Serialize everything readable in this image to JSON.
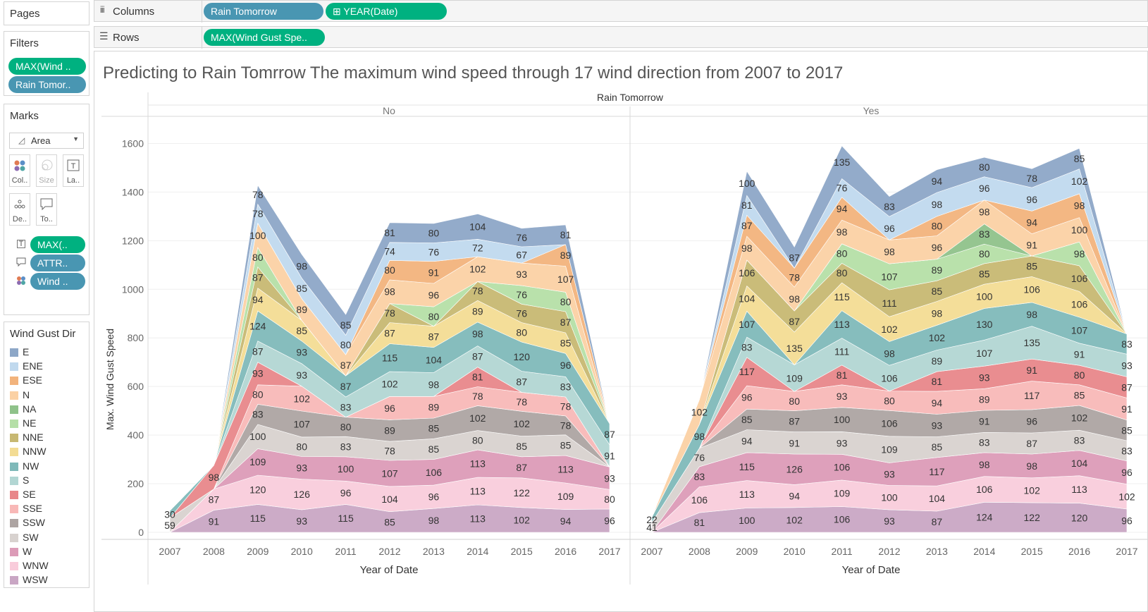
{
  "pages": {
    "title": "Pages"
  },
  "filters": {
    "title": "Filters",
    "pills": [
      "MAX(Wind ..",
      "Rain Tomor.."
    ]
  },
  "marks": {
    "title": "Marks",
    "type": "Area",
    "buttons": [
      "Col..",
      "Size",
      "La..",
      "De..",
      "To.."
    ],
    "pills": [
      "MAX(..",
      "ATTR..",
      "Wind .."
    ]
  },
  "legend": {
    "title": "Wind Gust Dir",
    "items": [
      {
        "name": "E",
        "color": "#8da7c7"
      },
      {
        "name": "ENE",
        "color": "#c0d9ee"
      },
      {
        "name": "ESE",
        "color": "#f2b37c"
      },
      {
        "name": "N",
        "color": "#fbd1a4"
      },
      {
        "name": "NA",
        "color": "#8fc28a"
      },
      {
        "name": "NE",
        "color": "#b5dfa7"
      },
      {
        "name": "NNE",
        "color": "#c7b872"
      },
      {
        "name": "NNW",
        "color": "#f3dc94"
      },
      {
        "name": "NW",
        "color": "#7fb9b9"
      },
      {
        "name": "S",
        "color": "#b2d6d3"
      },
      {
        "name": "SE",
        "color": "#e8878a"
      },
      {
        "name": "SSE",
        "color": "#f8b8b7"
      },
      {
        "name": "SSW",
        "color": "#ada4a2"
      },
      {
        "name": "SW",
        "color": "#d8d2cf"
      },
      {
        "name": "W",
        "color": "#dc9bb7"
      },
      {
        "name": "WNW",
        "color": "#f9ccdb"
      },
      {
        "name": "WSW",
        "color": "#c9a6c4"
      }
    ]
  },
  "shelves": {
    "columns_label": "Columns",
    "rows_label": "Rows",
    "columns_pills": [
      "Rain Tomorrow",
      "⊞ YEAR(Date)"
    ],
    "rows_pills": [
      "MAX(Wind Gust Spe.."
    ]
  },
  "chart_data": {
    "type": "area",
    "title": "Predicting to Rain Tomrrow The maximum wind speed through 17 wind direction  from 2007 to 2017",
    "column_header": "Rain Tomorrow",
    "panels": [
      "No",
      "Yes"
    ],
    "xlabel": "Year of Date",
    "ylabel": "Max. Wind Gust Speed",
    "ylim": [
      0,
      1700
    ],
    "yticks": [
      0,
      200,
      400,
      600,
      800,
      1000,
      1200,
      1400,
      1600
    ],
    "x": [
      2007,
      2008,
      2009,
      2010,
      2011,
      2012,
      2013,
      2014,
      2015,
      2016,
      2017
    ],
    "series_order": [
      "WSW",
      "WNW",
      "W",
      "SW",
      "SSW",
      "SSE",
      "SE",
      "S",
      "NW",
      "NNW",
      "NNE",
      "NE",
      "NA",
      "N",
      "ESE",
      "ENE",
      "E"
    ],
    "panels_data": [
      {
        "panel": "No",
        "series": [
          {
            "name": "WSW",
            "values": [
              null,
              91,
              115,
              93,
              115,
              85,
              98,
              113,
              102,
              94,
              96
            ]
          },
          {
            "name": "WNW",
            "values": [
              null,
              87,
              120,
              126,
              96,
              104,
              96,
              113,
              122,
              109,
              80
            ]
          },
          {
            "name": "W",
            "values": [
              null,
              null,
              109,
              93,
              100,
              107,
              106,
              113,
              87,
              113,
              93
            ]
          },
          {
            "name": "SW",
            "values": [
              59,
              null,
              100,
              80,
              83,
              78,
              85,
              80,
              85,
              85,
              null
            ]
          },
          {
            "name": "SSW",
            "values": [
              null,
              null,
              83,
              107,
              80,
              89,
              85,
              102,
              102,
              78,
              null
            ]
          },
          {
            "name": "SSE",
            "values": [
              null,
              null,
              80,
              102,
              null,
              96,
              89,
              78,
              78,
              78,
              null
            ]
          },
          {
            "name": "SE",
            "values": [
              null,
              98,
              93,
              null,
              null,
              null,
              null,
              81,
              null,
              null,
              null
            ]
          },
          {
            "name": "S",
            "values": [
              null,
              null,
              87,
              93,
              83,
              102,
              98,
              87,
              87,
              83,
              91
            ]
          },
          {
            "name": "NW",
            "values": [
              30,
              null,
              124,
              93,
              87,
              115,
              104,
              98,
              120,
              96,
              87
            ]
          },
          {
            "name": "NNW",
            "values": [
              null,
              null,
              94,
              85,
              null,
              87,
              87,
              89,
              80,
              85,
              null
            ]
          },
          {
            "name": "NNE",
            "values": [
              null,
              null,
              87,
              null,
              null,
              78,
              null,
              78,
              76,
              87,
              null
            ]
          },
          {
            "name": "NE",
            "values": [
              null,
              null,
              80,
              null,
              null,
              null,
              80,
              null,
              76,
              80,
              null
            ]
          },
          {
            "name": "NA",
            "values": [
              null,
              null,
              null,
              null,
              null,
              null,
              null,
              null,
              null,
              null,
              null
            ]
          },
          {
            "name": "N",
            "values": [
              null,
              null,
              100,
              89,
              87,
              98,
              96,
              102,
              93,
              107,
              null
            ]
          },
          {
            "name": "ESE",
            "values": [
              null,
              null,
              null,
              null,
              null,
              80,
              91,
              null,
              null,
              89,
              null
            ]
          },
          {
            "name": "ENE",
            "values": [
              null,
              null,
              78,
              85,
              80,
              74,
              76,
              72,
              67,
              null,
              null
            ]
          },
          {
            "name": "E",
            "values": [
              null,
              null,
              78,
              98,
              85,
              81,
              80,
              104,
              76,
              81,
              null
            ]
          }
        ]
      },
      {
        "panel": "Yes",
        "series": [
          {
            "name": "WSW",
            "values": [
              null,
              81,
              100,
              102,
              106,
              93,
              87,
              124,
              122,
              120,
              96
            ]
          },
          {
            "name": "WNW",
            "values": [
              null,
              106,
              113,
              94,
              109,
              100,
              104,
              106,
              102,
              113,
              102
            ]
          },
          {
            "name": "W",
            "values": [
              null,
              83,
              115,
              126,
              106,
              93,
              117,
              98,
              98,
              104,
              96
            ]
          },
          {
            "name": "SW",
            "values": [
              41,
              76,
              94,
              91,
              93,
              109,
              85,
              83,
              87,
              83,
              83
            ]
          },
          {
            "name": "SSW",
            "values": [
              null,
              null,
              85,
              87,
              100,
              106,
              93,
              91,
              96,
              102,
              85
            ]
          },
          {
            "name": "SSE",
            "values": [
              null,
              null,
              96,
              80,
              93,
              80,
              94,
              89,
              117,
              85,
              91
            ]
          },
          {
            "name": "SE",
            "values": [
              null,
              null,
              117,
              null,
              81,
              null,
              81,
              93,
              91,
              80,
              87
            ]
          },
          {
            "name": "S",
            "values": [
              null,
              null,
              83,
              109,
              111,
              106,
              89,
              107,
              135,
              91,
              93
            ]
          },
          {
            "name": "NW",
            "values": [
              22,
              98,
              107,
              null,
              113,
              98,
              102,
              130,
              98,
              107,
              83
            ]
          },
          {
            "name": "NNW",
            "values": [
              null,
              null,
              104,
              135,
              115,
              102,
              98,
              100,
              106,
              106,
              null
            ]
          },
          {
            "name": "NNE",
            "values": [
              null,
              null,
              106,
              87,
              80,
              111,
              85,
              85,
              85,
              106,
              null
            ]
          },
          {
            "name": "NE",
            "values": [
              null,
              null,
              null,
              null,
              80,
              107,
              89,
              80,
              null,
              98,
              null
            ]
          },
          {
            "name": "NA",
            "values": [
              null,
              null,
              null,
              null,
              null,
              null,
              null,
              83,
              null,
              null,
              null
            ]
          },
          {
            "name": "N",
            "values": [
              null,
              102,
              98,
              98,
              98,
              98,
              96,
              98,
              91,
              100,
              null
            ]
          },
          {
            "name": "ESE",
            "values": [
              null,
              null,
              87,
              78,
              94,
              null,
              80,
              null,
              94,
              98,
              null
            ]
          },
          {
            "name": "ENE",
            "values": [
              null,
              null,
              81,
              null,
              76,
              96,
              98,
              96,
              96,
              102,
              null
            ]
          },
          {
            "name": "E",
            "values": [
              null,
              null,
              100,
              87,
              135,
              83,
              94,
              80,
              78,
              85,
              null
            ]
          }
        ]
      }
    ]
  }
}
